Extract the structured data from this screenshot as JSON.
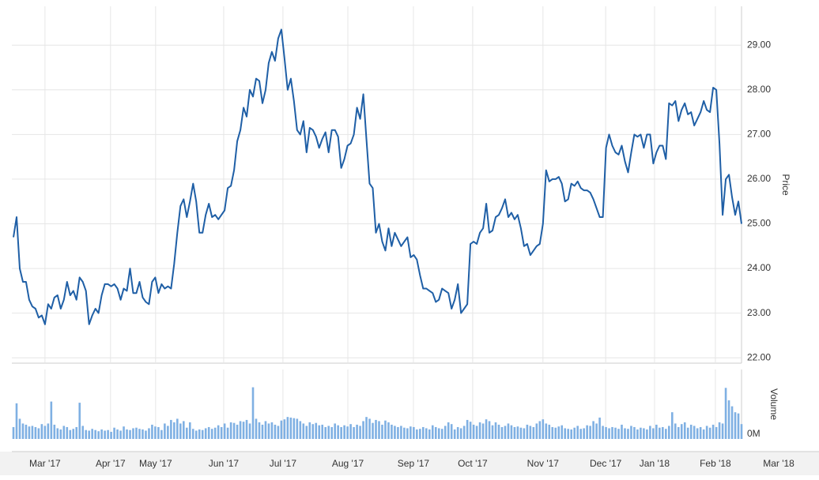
{
  "chart_data": [
    {
      "type": "line",
      "ylabel": "Price",
      "color": "#1f5fa6",
      "grid": true,
      "values": [
        24.7,
        25.15,
        24.0,
        23.7,
        23.7,
        23.3,
        23.15,
        23.1,
        22.9,
        22.95,
        22.75,
        23.2,
        23.1,
        23.35,
        23.4,
        23.1,
        23.3,
        23.7,
        23.4,
        23.5,
        23.3,
        23.8,
        23.7,
        23.5,
        22.75,
        22.95,
        23.1,
        23.0,
        23.4,
        23.65,
        23.65,
        23.6,
        23.65,
        23.55,
        23.3,
        23.55,
        23.5,
        24.0,
        23.45,
        23.45,
        23.7,
        23.35,
        23.25,
        23.2,
        23.7,
        23.8,
        23.45,
        23.65,
        23.55,
        23.6,
        23.55,
        24.1,
        24.8,
        25.4,
        25.55,
        25.15,
        25.5,
        25.9,
        25.5,
        24.8,
        24.8,
        25.2,
        25.45,
        25.15,
        25.2,
        25.1,
        25.2,
        25.3,
        25.8,
        25.85,
        26.2,
        26.85,
        27.1,
        27.6,
        27.4,
        28.0,
        27.85,
        28.25,
        28.2,
        27.7,
        28.0,
        28.6,
        28.85,
        28.65,
        29.15,
        29.35,
        28.7,
        28.0,
        28.25,
        27.75,
        27.1,
        27.0,
        27.3,
        26.6,
        27.15,
        27.1,
        26.95,
        26.7,
        26.9,
        27.05,
        26.6,
        27.1,
        27.1,
        26.95,
        26.25,
        26.45,
        26.75,
        26.8,
        27.0,
        27.6,
        27.35,
        27.9,
        26.9,
        25.9,
        25.8,
        24.8,
        25.0,
        24.6,
        24.4,
        24.9,
        24.5,
        24.8,
        24.65,
        24.5,
        24.6,
        24.7,
        24.25,
        24.3,
        24.2,
        23.85,
        23.55,
        23.55,
        23.5,
        23.45,
        23.25,
        23.3,
        23.55,
        23.5,
        23.45,
        23.1,
        23.3,
        23.65,
        23.0,
        23.1,
        23.2,
        24.55,
        24.6,
        24.55,
        24.8,
        24.9,
        25.45,
        24.8,
        24.85,
        25.15,
        25.2,
        25.35,
        25.55,
        25.15,
        25.25,
        25.1,
        25.2,
        24.9,
        24.5,
        24.55,
        24.3,
        24.4,
        24.5,
        24.55,
        25.0,
        26.2,
        25.95,
        26.0,
        26.0,
        26.05,
        25.9,
        25.5,
        25.55,
        25.9,
        25.85,
        25.95,
        25.8,
        25.75,
        25.75,
        25.7,
        25.55,
        25.35,
        25.15,
        25.15,
        26.7,
        27.0,
        26.75,
        26.6,
        26.55,
        26.75,
        26.4,
        26.15,
        26.6,
        27.0,
        26.95,
        27.0,
        26.7,
        27.0,
        27.0,
        26.35,
        26.6,
        26.75,
        26.75,
        26.45,
        27.7,
        27.65,
        27.75,
        27.3,
        27.55,
        27.7,
        27.45,
        27.5,
        27.2,
        27.35,
        27.5,
        27.75,
        27.55,
        27.5,
        28.05,
        28.0,
        26.8,
        25.2,
        26.0,
        26.1,
        25.6,
        25.2,
        25.5,
        25.0
      ],
      "xlim": [
        0,
        231
      ],
      "xticks": [
        {
          "value": 10.0,
          "label": "Mar '17"
        },
        {
          "value": 30.8,
          "label": "Apr '17"
        },
        {
          "value": 45.1,
          "label": "May '17"
        },
        {
          "value": 66.7,
          "label": "Jun '17"
        },
        {
          "value": 85.5,
          "label": "Jul '17"
        },
        {
          "value": 106.1,
          "label": "Aug '17"
        },
        {
          "value": 126.9,
          "label": "Sep '17"
        },
        {
          "value": 145.7,
          "label": "Oct '17"
        },
        {
          "value": 168.0,
          "label": "Nov '17"
        },
        {
          "value": 187.9,
          "label": "Dec '17"
        },
        {
          "value": 203.4,
          "label": "Jan '18"
        },
        {
          "value": 222.7,
          "label": "Feb '18"
        },
        {
          "value": 242.8,
          "label": "Mar '18"
        }
      ],
      "ylim": [
        21.88,
        29.87
      ],
      "yticks": [
        {
          "value": 22,
          "label": "22.00"
        },
        {
          "value": 23,
          "label": "23.00"
        },
        {
          "value": 24,
          "label": "24.00"
        },
        {
          "value": 25,
          "label": "25.00"
        },
        {
          "value": 26,
          "label": "26.00"
        },
        {
          "value": 27,
          "label": "27.00"
        },
        {
          "value": 28,
          "label": "28.00"
        },
        {
          "value": 29,
          "label": "29.00"
        }
      ]
    },
    {
      "type": "bar",
      "ylabel": "Volume",
      "color": "#7fb0e3",
      "values": [
        2.0,
        6.0,
        3.4,
        2.6,
        2.4,
        2.1,
        2.2,
        2.0,
        1.8,
        2.5,
        2.2,
        2.6,
        6.3,
        2.4,
        1.8,
        1.6,
        2.2,
        2.0,
        1.5,
        1.7,
        2.0,
        6.1,
        2.2,
        1.5,
        1.4,
        1.7,
        1.5,
        1.3,
        1.6,
        1.4,
        1.5,
        1.2,
        1.9,
        1.6,
        1.4,
        2.1,
        1.6,
        1.5,
        1.8,
        1.9,
        1.7,
        1.6,
        1.4,
        1.8,
        2.4,
        2.1,
        2.0,
        1.5,
        2.6,
        2.2,
        3.2,
        2.8,
        3.4,
        2.6,
        3.0,
        1.9,
        2.8,
        1.7,
        1.4,
        1.6,
        1.5,
        1.8,
        2.0,
        1.7,
        1.9,
        2.3,
        2.0,
        2.6,
        1.9,
        2.8,
        2.7,
        2.4,
        3.0,
        2.9,
        3.2,
        2.6,
        8.7,
        3.4,
        2.8,
        2.4,
        3.0,
        2.6,
        2.8,
        2.4,
        2.2,
        3.1,
        3.3,
        3.7,
        3.6,
        3.5,
        3.4,
        3.0,
        2.6,
        2.2,
        2.8,
        2.5,
        2.7,
        2.3,
        2.4,
        2.0,
        2.2,
        2.0,
        2.6,
        2.3,
        2.0,
        2.3,
        2.1,
        2.5,
        2.0,
        2.4,
        2.2,
        3.0,
        3.7,
        3.4,
        2.7,
        3.2,
        3.0,
        2.4,
        3.1,
        2.8,
        2.4,
        2.2,
        2.0,
        2.2,
        1.9,
        1.8,
        2.1,
        2.0,
        1.6,
        1.7,
        2.0,
        1.8,
        1.6,
        2.3,
        2.0,
        1.8,
        1.7,
        2.2,
        2.8,
        2.5,
        1.6,
        2.0,
        1.8,
        2.2,
        3.2,
        2.9,
        2.4,
        2.2,
        2.8,
        2.6,
        3.3,
        3.0,
        2.3,
        2.8,
        2.4,
        2.0,
        2.2,
        2.6,
        2.3,
        2.0,
        2.1,
        1.9,
        1.8,
        2.4,
        2.2,
        2.0,
        2.6,
        3.0,
        3.3,
        2.6,
        2.4,
        2.0,
        1.9,
        2.1,
        2.3,
        1.8,
        1.7,
        1.6,
        1.9,
        2.2,
        1.7,
        1.8,
        2.3,
        2.2,
        3.0,
        2.6,
        3.6,
        2.2,
        2.0,
        1.8,
        2.0,
        1.9,
        1.7,
        2.4,
        1.8,
        1.7,
        2.2,
        2.0,
        1.6,
        1.9,
        1.8,
        1.6,
        2.2,
        1.8,
        2.4,
        1.9,
        2.0,
        1.7,
        2.2,
        4.5,
        2.6,
        2.0,
        2.5,
        2.8,
        1.9,
        2.4,
        2.2,
        1.8,
        2.0,
        1.6,
        2.2,
        1.9,
        2.4,
        2.0,
        2.8,
        2.6,
        8.6,
        6.5,
        5.5,
        4.5,
        4.3,
        2.5
      ],
      "ylim": [
        0,
        11.7
      ],
      "yticks": [
        {
          "value": 0,
          "label": "0M"
        }
      ]
    }
  ]
}
